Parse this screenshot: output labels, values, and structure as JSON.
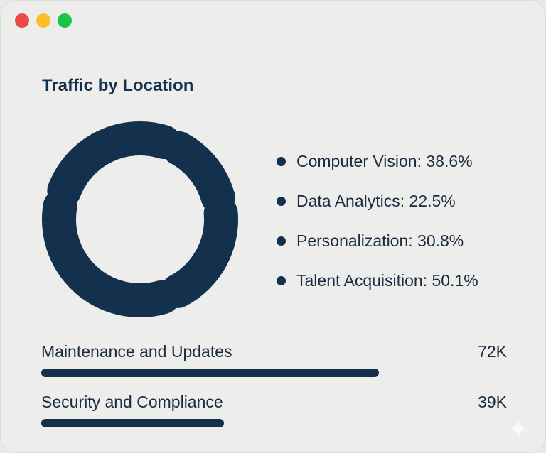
{
  "window": {
    "controls": [
      {
        "name": "close",
        "color": "#ec4b45"
      },
      {
        "name": "minimize",
        "color": "#f9c02a"
      },
      {
        "name": "maximize",
        "color": "#1bc448"
      }
    ]
  },
  "chart_data": {
    "type": "donut",
    "title": "Traffic by Location",
    "color": "#13304d",
    "legend_position": "right",
    "categories": [
      "Computer Vision",
      "Data Analytics",
      "Personalization",
      "Talent Acquisition"
    ],
    "values": [
      38.6,
      22.5,
      30.8,
      50.1
    ],
    "labels": [
      "Computer Vision: 38.6%",
      "Data Analytics: 22.5%",
      "Personalization: 30.8%",
      "Talent Acquisition: 50.1%"
    ]
  },
  "metrics": [
    {
      "label": "Maintenance and Updates",
      "value_text": "72K",
      "value": 72
    },
    {
      "label": "Security and Compliance",
      "value_text": "39K",
      "value": 39
    }
  ]
}
